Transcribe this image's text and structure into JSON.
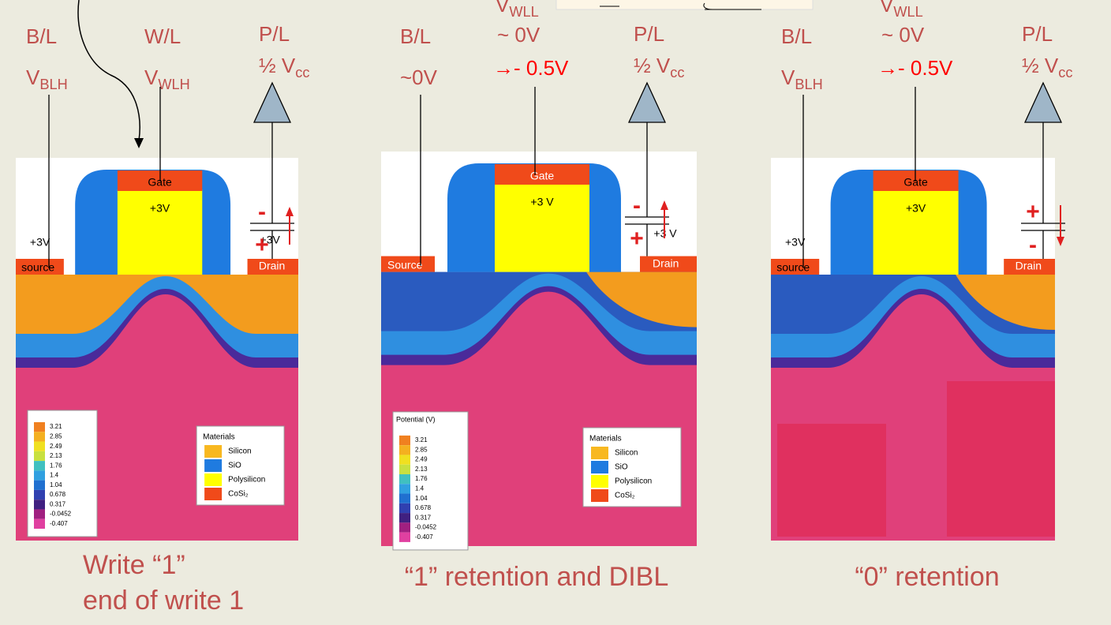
{
  "panels": [
    {
      "bl": {
        "label": "B/L",
        "volt": {
          "main": "V",
          "sub": "BLH"
        }
      },
      "wl": {
        "label": "W/L",
        "volt": {
          "main": "V",
          "sub": "WLH"
        }
      },
      "pl": {
        "label": "P/L",
        "volt": {
          "main": "½ V",
          "sub": "cc"
        }
      },
      "device": {
        "gate": "Gate",
        "gate_v": "+3V",
        "source": "source",
        "source_v": "+3V",
        "drain": "Drain",
        "drain_v": "+3V",
        "cap_top": "-",
        "cap_bottom": "+"
      },
      "legend": {
        "values": [
          "3.21",
          "2.85",
          "2.49",
          "2.13",
          "1.76",
          "1.4",
          "1.04",
          "0.678",
          "0.317",
          "-0.0452",
          "-0.407"
        ]
      },
      "materials": {
        "title": "Materials",
        "items": [
          "Silicon",
          "SiO",
          "Polysilicon",
          "CoSi₂"
        ]
      },
      "caption": [
        "Write “1”",
        "end of write 1"
      ]
    },
    {
      "bl": {
        "label": "B/L",
        "volt": "~0V"
      },
      "wl": {
        "volt": {
          "main": "V",
          "sub": "WLL"
        },
        "level": "~ 0V",
        "change": "→- 0.5V"
      },
      "pl": {
        "label": "P/L",
        "volt": {
          "main": "½ V",
          "sub": "cc"
        }
      },
      "device": {
        "gate": "Gate",
        "gate_v": "+3 V",
        "source": "Source",
        "drain": "Drain",
        "drain_v": "+3 V",
        "cap_top": "-",
        "cap_bottom": "+"
      },
      "legend": {
        "title": "Potential (V)",
        "values": [
          "3.21",
          "2.85",
          "2.49",
          "2.13",
          "1.76",
          "1.4",
          "1.04",
          "0.678",
          "0.317",
          "-0.0452",
          "-0.407"
        ]
      },
      "materials": {
        "title": "Materials",
        "items": [
          "Silicon",
          "SiO",
          "Polysilicon",
          "CoSi₂"
        ]
      },
      "caption": [
        "“1” retention and DIBL"
      ]
    },
    {
      "bl": {
        "label": "B/L",
        "volt": {
          "main": "V",
          "sub": "BLH"
        }
      },
      "wl": {
        "volt": {
          "main": "V",
          "sub": "WLL"
        },
        "level": "~ 0V",
        "change": "→- 0.5V"
      },
      "pl": {
        "label": "P/L",
        "volt": {
          "main": "½ V",
          "sub": "cc"
        }
      },
      "device": {
        "gate": "Gate",
        "gate_v": "+3V",
        "source": "source",
        "source_v": "+3V",
        "drain": "Drain",
        "cap_top": "+",
        "cap_bottom": "-"
      },
      "caption": [
        "“0” retention"
      ]
    }
  ]
}
